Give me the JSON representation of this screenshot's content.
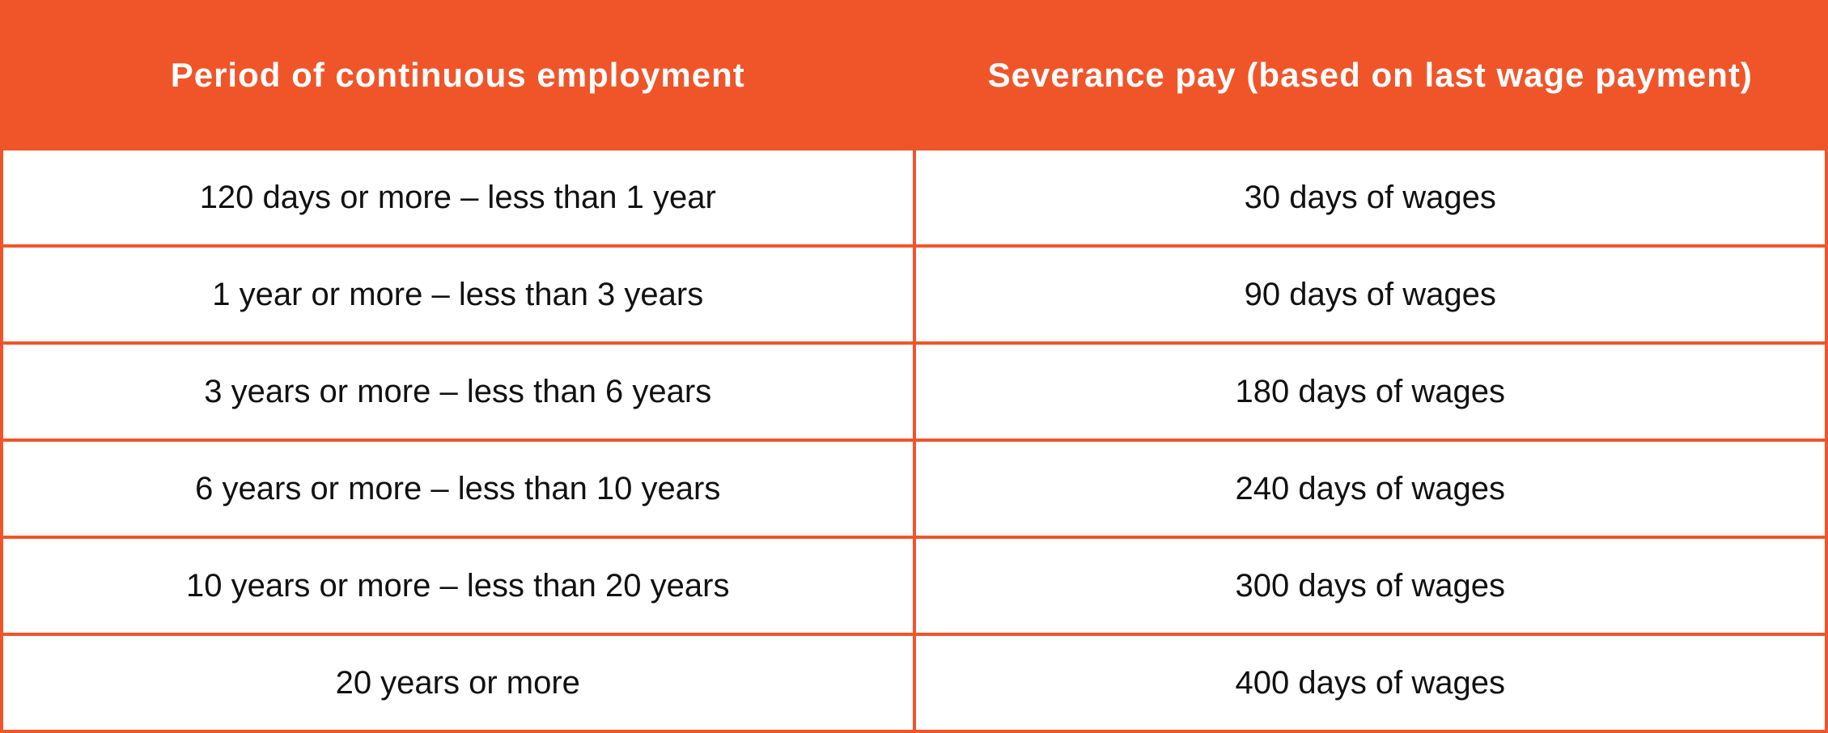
{
  "table": {
    "header": [
      "Period of continuous employment",
      "Severance pay (based on last wage payment)"
    ],
    "rows": [
      [
        "120 days or more – less than 1 year",
        "30 days of wages"
      ],
      [
        "1 year or more – less than 3 years",
        "90 days of wages"
      ],
      [
        "3 years or more – less than 6 years",
        "180 days of wages"
      ],
      [
        "6 years or more – less than 10 years",
        "240 days of wages"
      ],
      [
        "10 years or more – less than 20 years",
        "300 days of wages"
      ],
      [
        "20 years or more",
        "400 days of wages"
      ]
    ]
  }
}
